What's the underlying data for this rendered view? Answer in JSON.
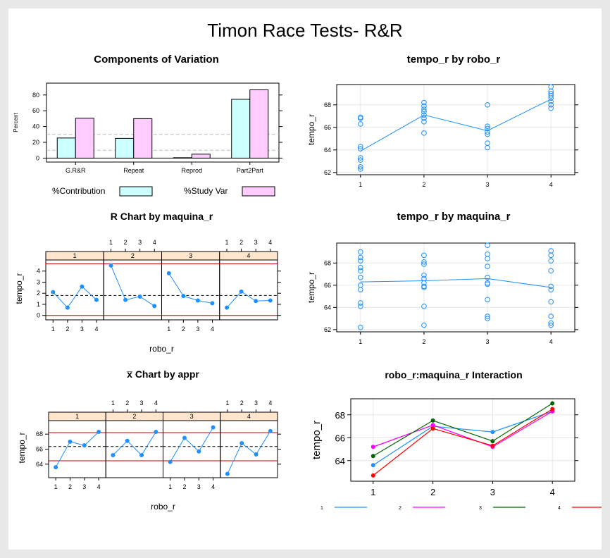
{
  "page": {
    "title": "Timon Race Tests- R&R"
  },
  "chart_data": [
    {
      "id": "components",
      "type": "bar",
      "title": "Components of Variation",
      "ylabel": "Percent",
      "categories": [
        "G.R&R",
        "Repeat",
        "Reprod",
        "Part2Part"
      ],
      "ylim": [
        -5,
        95
      ],
      "yticks": [
        0,
        20,
        40,
        60,
        80
      ],
      "reference_lines": [
        10,
        30
      ],
      "series": [
        {
          "name": "%Contribution",
          "values": [
            25.5,
            25.0,
            0.5,
            74.5
          ],
          "color": "#ccffff"
        },
        {
          "name": "%Study Var",
          "values": [
            50.5,
            50.0,
            5.0,
            86.5
          ],
          "color": "#ffccff"
        }
      ],
      "legend_position": "bottom"
    },
    {
      "id": "tempo-by-robo",
      "type": "scatter",
      "title": "tempo_r by robo_r",
      "ylabel": "tempo_r",
      "x_categories": [
        "1",
        "2",
        "3",
        "4"
      ],
      "ylim": [
        61.8,
        69.8
      ],
      "yticks": [
        62,
        64,
        66,
        68
      ],
      "points": [
        [
          1,
          66.9
        ],
        [
          1,
          66.8
        ],
        [
          1,
          66.3
        ],
        [
          1,
          64.3
        ],
        [
          1,
          64.1
        ],
        [
          1,
          63.3
        ],
        [
          1,
          63.1
        ],
        [
          1,
          62.5
        ],
        [
          1,
          62.3
        ],
        [
          2,
          68.2
        ],
        [
          2,
          67.9
        ],
        [
          2,
          67.6
        ],
        [
          2,
          67.4
        ],
        [
          2,
          67.1
        ],
        [
          2,
          66.8
        ],
        [
          2,
          66.5
        ],
        [
          2,
          65.5
        ],
        [
          3,
          68.0
        ],
        [
          3,
          66.1
        ],
        [
          3,
          65.9
        ],
        [
          3,
          65.6
        ],
        [
          3,
          65.4
        ],
        [
          3,
          64.6
        ],
        [
          3,
          64.2
        ],
        [
          4,
          69.6
        ],
        [
          4,
          69.2
        ],
        [
          4,
          69.0
        ],
        [
          4,
          68.8
        ],
        [
          4,
          68.6
        ],
        [
          4,
          68.3
        ],
        [
          4,
          68.0
        ],
        [
          4,
          67.7
        ]
      ],
      "means": [
        63.9,
        67.1,
        65.7,
        68.5
      ],
      "color": "#1e90ff"
    },
    {
      "id": "r-chart",
      "type": "line",
      "title": "R Chart by maquina_r",
      "xlabel": "robo_r",
      "ylabel": "tempo_r",
      "panels": [
        "1",
        "2",
        "3",
        "4"
      ],
      "x_categories": [
        "1",
        "2",
        "3",
        "4"
      ],
      "ylim": [
        -0.4,
        5.0
      ],
      "yticks": [
        0,
        1,
        2,
        3,
        4
      ],
      "center_line": 1.8,
      "lcl": 0,
      "ucl": 4.65,
      "series": [
        {
          "values": [
            2.1,
            0.7,
            2.6,
            1.4
          ]
        },
        {
          "values": [
            4.5,
            1.4,
            1.7,
            0.85
          ]
        },
        {
          "values": [
            3.8,
            1.75,
            1.35,
            1.1
          ]
        },
        {
          "values": [
            0.7,
            2.15,
            1.3,
            1.35
          ]
        }
      ],
      "color": "#1e90ff"
    },
    {
      "id": "tempo-by-maquina",
      "type": "scatter",
      "title": "tempo_r by maquina_r",
      "ylabel": "tempo_r",
      "x_categories": [
        "1",
        "2",
        "3",
        "4"
      ],
      "ylim": [
        61.8,
        69.8
      ],
      "yticks": [
        62,
        64,
        66,
        68
      ],
      "points": [
        [
          1,
          69.0
        ],
        [
          1,
          68.5
        ],
        [
          1,
          68.2
        ],
        [
          1,
          67.6
        ],
        [
          1,
          67.3
        ],
        [
          1,
          66.7
        ],
        [
          1,
          66.0
        ],
        [
          1,
          65.6
        ],
        [
          1,
          64.4
        ],
        [
          1,
          64.1
        ],
        [
          1,
          62.2
        ],
        [
          2,
          68.7
        ],
        [
          2,
          68.1
        ],
        [
          2,
          67.9
        ],
        [
          2,
          66.9
        ],
        [
          2,
          66.6
        ],
        [
          2,
          66.2
        ],
        [
          2,
          65.9
        ],
        [
          2,
          65.8
        ],
        [
          2,
          64.1
        ],
        [
          2,
          62.4
        ],
        [
          3,
          69.6
        ],
        [
          3,
          68.8
        ],
        [
          3,
          68.4
        ],
        [
          3,
          67.7
        ],
        [
          3,
          66.7
        ],
        [
          3,
          66.2
        ],
        [
          3,
          66.1
        ],
        [
          3,
          64.7
        ],
        [
          3,
          63.2
        ],
        [
          3,
          63.0
        ],
        [
          4,
          69.1
        ],
        [
          4,
          68.7
        ],
        [
          4,
          68.2
        ],
        [
          4,
          67.3
        ],
        [
          4,
          65.9
        ],
        [
          4,
          65.6
        ],
        [
          4,
          64.5
        ],
        [
          4,
          63.2
        ],
        [
          4,
          62.6
        ],
        [
          4,
          62.4
        ]
      ],
      "means": [
        66.3,
        66.4,
        66.6,
        65.8
      ],
      "color": "#1e90ff"
    },
    {
      "id": "xbar-chart",
      "type": "line",
      "title": "x̅ Chart by appr",
      "xlabel": "robo_r",
      "ylabel": "tempo_r",
      "panels": [
        "1",
        "2",
        "3",
        "4"
      ],
      "x_categories": [
        "1",
        "2",
        "3",
        "4"
      ],
      "ylim": [
        62.2,
        69.8
      ],
      "yticks": [
        64,
        66,
        68
      ],
      "center_line": 66.35,
      "lcl": 64.45,
      "ucl": 68.2,
      "series": [
        {
          "values": [
            63.6,
            67.0,
            66.5,
            68.3
          ]
        },
        {
          "values": [
            65.2,
            67.1,
            65.2,
            68.3
          ]
        },
        {
          "values": [
            64.3,
            67.5,
            65.7,
            68.9
          ]
        },
        {
          "values": [
            62.7,
            66.8,
            65.3,
            68.4
          ]
        }
      ],
      "color": "#1e90ff"
    },
    {
      "id": "interaction",
      "type": "line",
      "title": "robo_r:maquina_r Interaction",
      "ylabel": "tempo_r",
      "x_categories": [
        "1",
        "2",
        "3",
        "4"
      ],
      "ylim": [
        62.2,
        69.4
      ],
      "yticks": [
        64,
        66,
        68
      ],
      "series": [
        {
          "name": "1",
          "values": [
            63.6,
            67.0,
            66.5,
            68.3
          ],
          "color": "#1e90ff"
        },
        {
          "name": "2",
          "values": [
            65.2,
            67.1,
            65.2,
            68.3
          ],
          "color": "#ff00ff"
        },
        {
          "name": "3",
          "values": [
            64.4,
            67.5,
            65.7,
            69.0
          ],
          "color": "#006400"
        },
        {
          "name": "4",
          "values": [
            62.7,
            66.8,
            65.3,
            68.5
          ],
          "color": "#ff0000"
        }
      ],
      "legend_position": "bottom"
    }
  ]
}
